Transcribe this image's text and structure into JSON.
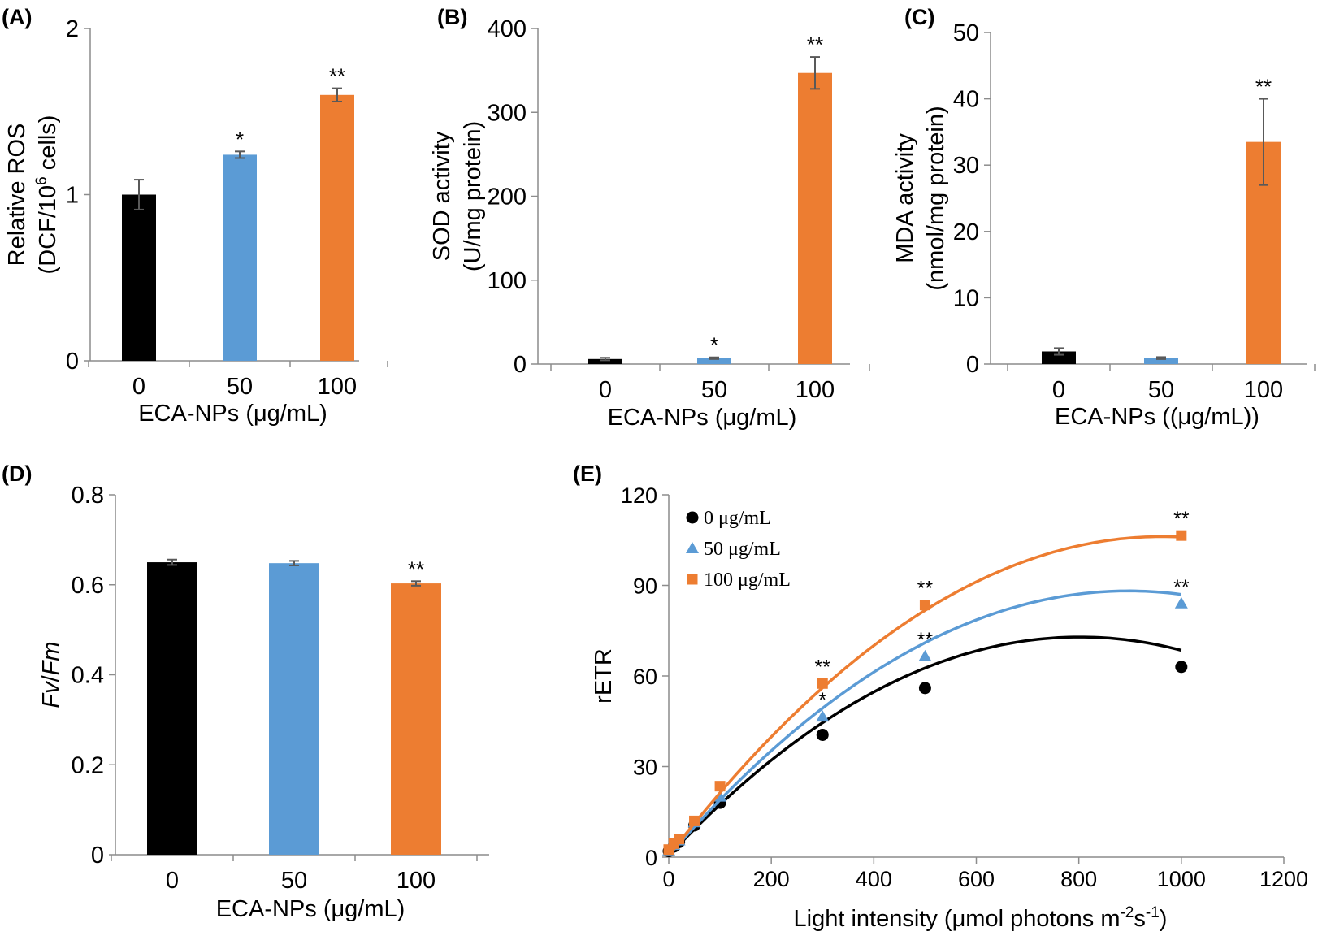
{
  "colors": {
    "black": "#000000",
    "blue": "#5b9bd5",
    "orange": "#ed7d31",
    "errbar": "#595959"
  },
  "chart_data": [
    {
      "panel": "(A)",
      "type": "bar",
      "categories": [
        "0",
        "50",
        "100"
      ],
      "values": [
        1.0,
        1.24,
        1.6
      ],
      "errors": [
        0.09,
        0.02,
        0.04
      ],
      "significance": [
        "",
        "*",
        "**"
      ],
      "colors": [
        "#000000",
        "#5b9bd5",
        "#ed7d31"
      ],
      "xlabel": "ECA-NPs (μg/mL)",
      "ylabel_lines": [
        "Relative ROS",
        "(DCF/10",
        "6",
        " cells)"
      ],
      "ylim": [
        0,
        2
      ],
      "yticks": [
        "0",
        "1",
        "2"
      ]
    },
    {
      "panel": "(B)",
      "type": "bar",
      "categories": [
        "0",
        "50",
        "100"
      ],
      "values": [
        6,
        7,
        347
      ],
      "errors": [
        1.5,
        1.0,
        19
      ],
      "significance": [
        "",
        "*",
        "**"
      ],
      "colors": [
        "#000000",
        "#5b9bd5",
        "#ed7d31"
      ],
      "xlabel": "ECA-NPs (μg/mL)",
      "ylabel_lines": [
        "SOD activity",
        "(U/mg protein)"
      ],
      "ylim": [
        0,
        400
      ],
      "yticks": [
        "0",
        "100",
        "200",
        "300",
        "400"
      ]
    },
    {
      "panel": "(C)",
      "type": "bar",
      "categories": [
        "0",
        "50",
        "100"
      ],
      "values": [
        1.9,
        0.9,
        33.5
      ],
      "errors": [
        0.5,
        0.15,
        6.5
      ],
      "significance": [
        "",
        "",
        "**"
      ],
      "colors": [
        "#000000",
        "#5b9bd5",
        "#ed7d31"
      ],
      "xlabel": "ECA-NPs ((μg/mL))",
      "ylabel_lines": [
        "MDA activity",
        "(nmol/mg protein)"
      ],
      "ylim": [
        0,
        50
      ],
      "yticks": [
        "0",
        "10",
        "20",
        "30",
        "40",
        "50"
      ]
    },
    {
      "panel": "(D)",
      "type": "bar",
      "categories": [
        "0",
        "50",
        "100"
      ],
      "values": [
        0.65,
        0.648,
        0.603
      ],
      "errors": [
        0.006,
        0.005,
        0.005
      ],
      "significance": [
        "",
        "",
        "**"
      ],
      "colors": [
        "#000000",
        "#5b9bd5",
        "#ed7d31"
      ],
      "xlabel": "ECA-NPs (μg/mL)",
      "ylabel": "Fv/Fm",
      "ylim": [
        0,
        0.8
      ],
      "yticks": [
        "0",
        "0.2",
        "0.4",
        "0.6",
        "0.8"
      ]
    },
    {
      "panel": "(E)",
      "type": "line",
      "xlabel_main": "Light intensity (μmol photons m",
      "xlabel_sup1": "-2",
      "xlabel_mid": "s",
      "xlabel_sup2": "-1",
      "xlabel_end": ")",
      "ylabel": "rETR",
      "xlim": [
        0,
        1200
      ],
      "ylim": [
        0,
        120
      ],
      "xticks": [
        "0",
        "200",
        "400",
        "600",
        "800",
        "1000",
        "1200"
      ],
      "yticks": [
        "0",
        "30",
        "60",
        "90",
        "120"
      ],
      "legend_position": "top-left",
      "series": [
        {
          "name": "0 μg/mL",
          "color": "#000000",
          "marker": "circle",
          "x": [
            0,
            10,
            20,
            50,
            100,
            300,
            500,
            1000
          ],
          "y": [
            2,
            3.5,
            5,
            10.5,
            18,
            40.5,
            56,
            63
          ],
          "fit": [
            0.5,
            0.1805,
            -0.0001125
          ],
          "significance": [
            "",
            "",
            "",
            "",
            "",
            "",
            "",
            ""
          ]
        },
        {
          "name": "50 μg/mL",
          "color": "#5b9bd5",
          "marker": "triangle",
          "x": [
            0,
            10,
            20,
            50,
            100,
            300,
            500,
            1000
          ],
          "y": [
            2.2,
            4,
            5.5,
            11.5,
            20,
            46.5,
            66.5,
            84
          ],
          "fit": [
            0.5,
            0.1955,
            -0.000109
          ],
          "significance": [
            "",
            "",
            "",
            "",
            "",
            "*",
            "**",
            "**"
          ]
        },
        {
          "name": "100 μg/mL",
          "color": "#ed7d31",
          "marker": "square",
          "x": [
            0,
            10,
            20,
            50,
            100,
            300,
            500,
            1000
          ],
          "y": [
            2.5,
            4.5,
            6,
            12,
            23.5,
            57.5,
            83.5,
            106.5
          ],
          "fit": [
            0.5,
            0.2195,
            -0.000114
          ],
          "significance": [
            "",
            "",
            "",
            "",
            "",
            "**",
            "**",
            "**"
          ]
        }
      ]
    }
  ]
}
